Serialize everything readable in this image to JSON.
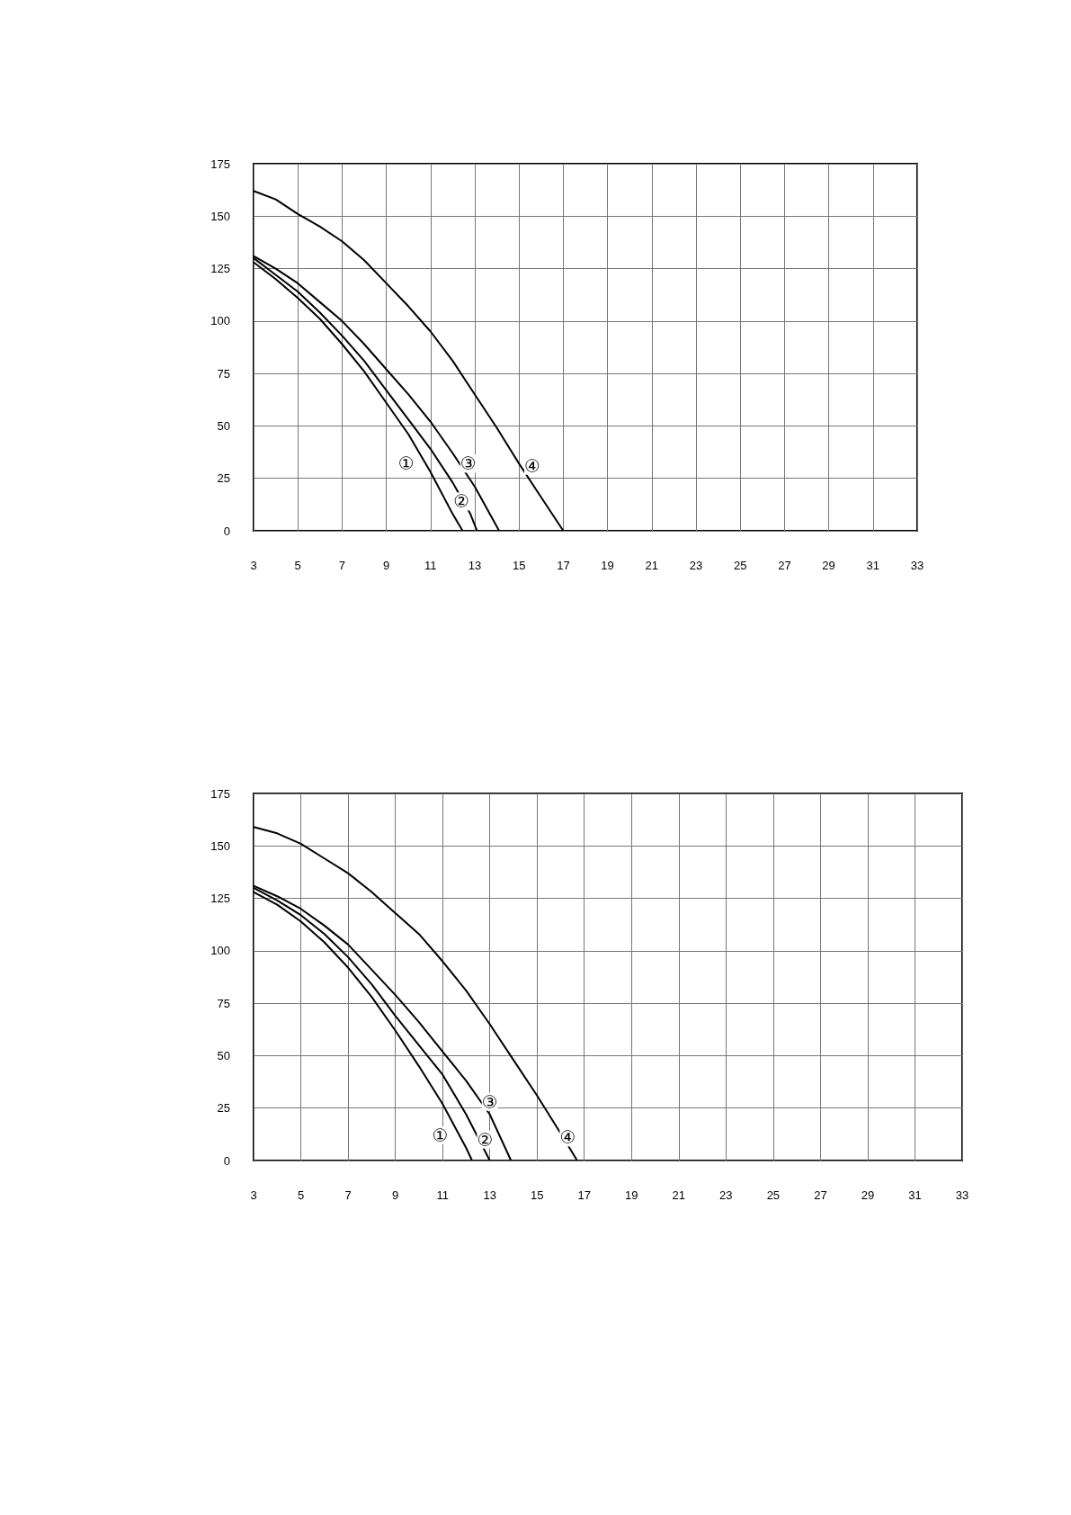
{
  "chart_data": [
    {
      "type": "line",
      "xlim": [
        3,
        33
      ],
      "xticks": [
        3,
        5,
        7,
        9,
        11,
        13,
        15,
        17,
        19,
        21,
        23,
        25,
        27,
        29,
        31,
        33
      ],
      "ylim": [
        0,
        175
      ],
      "yticks": [
        0,
        25,
        50,
        75,
        100,
        125,
        150,
        175
      ],
      "grid": true,
      "marker": "none",
      "line_style": "solid",
      "series": [
        {
          "color": "#000000",
          "x": [
            3,
            4,
            5,
            6,
            7,
            8,
            9,
            10,
            11,
            12,
            12.45
          ],
          "values": [
            128,
            120,
            111,
            101,
            89,
            76,
            61,
            46,
            28,
            8,
            0
          ]
        },
        {
          "color": "#000000",
          "x": [
            3,
            4,
            5,
            6,
            7,
            8,
            9,
            10,
            11,
            12,
            12.8,
            13.1
          ],
          "values": [
            130,
            122,
            114,
            104,
            93,
            81,
            67,
            53,
            39,
            23,
            8,
            0
          ]
        },
        {
          "color": "#000000",
          "x": [
            3,
            4,
            5,
            6,
            7,
            8,
            9,
            10,
            11,
            12,
            13,
            14.1
          ],
          "values": [
            131,
            125,
            118,
            109,
            100,
            89,
            77,
            65,
            52,
            37,
            21,
            0
          ]
        },
        {
          "color": "#000000",
          "x": [
            3,
            4,
            5,
            6,
            7,
            8,
            9,
            10,
            11,
            12,
            13,
            14,
            15,
            16,
            17
          ],
          "values": [
            162,
            158,
            151,
            145,
            138,
            129,
            118,
            107,
            95,
            81,
            65,
            49,
            32,
            16,
            0
          ]
        }
      ],
      "annotations": [
        {
          "text": "①",
          "x": 9.9,
          "y": 32
        },
        {
          "text": "②",
          "x": 12.4,
          "y": 14
        },
        {
          "text": "③",
          "x": 12.7,
          "y": 32
        },
        {
          "text": "④",
          "x": 15.6,
          "y": 31
        }
      ]
    },
    {
      "type": "line",
      "xlim": [
        3,
        33
      ],
      "xticks": [
        3,
        5,
        7,
        9,
        11,
        13,
        15,
        17,
        19,
        21,
        23,
        25,
        27,
        29,
        31,
        33
      ],
      "ylim": [
        0,
        175
      ],
      "yticks": [
        0,
        25,
        50,
        75,
        100,
        125,
        150,
        175
      ],
      "grid": true,
      "marker": "none",
      "line_style": "solid",
      "series": [
        {
          "color": "#000000",
          "x": [
            3,
            4,
            5,
            6,
            7,
            8,
            9,
            10,
            11,
            12,
            12.25
          ],
          "values": [
            128,
            122,
            114,
            104,
            92,
            78,
            62,
            45,
            27,
            6,
            0
          ]
        },
        {
          "color": "#000000",
          "x": [
            3,
            4,
            5,
            6,
            7,
            8,
            9,
            10,
            11,
            12,
            13
          ],
          "values": [
            130,
            124,
            117,
            108,
            97,
            84,
            69,
            55,
            41,
            22,
            0
          ]
        },
        {
          "color": "#000000",
          "x": [
            3,
            4,
            5,
            6,
            7,
            8,
            9,
            10,
            11,
            12,
            13,
            13.9
          ],
          "values": [
            131,
            126,
            120,
            112,
            103,
            91,
            79,
            66,
            52,
            38,
            22,
            0
          ]
        },
        {
          "color": "#000000",
          "x": [
            3,
            4,
            5,
            6,
            7,
            8,
            9,
            10,
            11,
            12,
            13,
            14,
            15,
            16,
            16.7
          ],
          "values": [
            159,
            156,
            151,
            144,
            137,
            128,
            118,
            108,
            95,
            81,
            65,
            48,
            31,
            13,
            0
          ]
        }
      ],
      "annotations": [
        {
          "text": "①",
          "x": 10.9,
          "y": 12
        },
        {
          "text": "②",
          "x": 12.8,
          "y": 10
        },
        {
          "text": "③",
          "x": 13,
          "y": 28
        },
        {
          "text": "④",
          "x": 16.3,
          "y": 11
        }
      ]
    }
  ]
}
